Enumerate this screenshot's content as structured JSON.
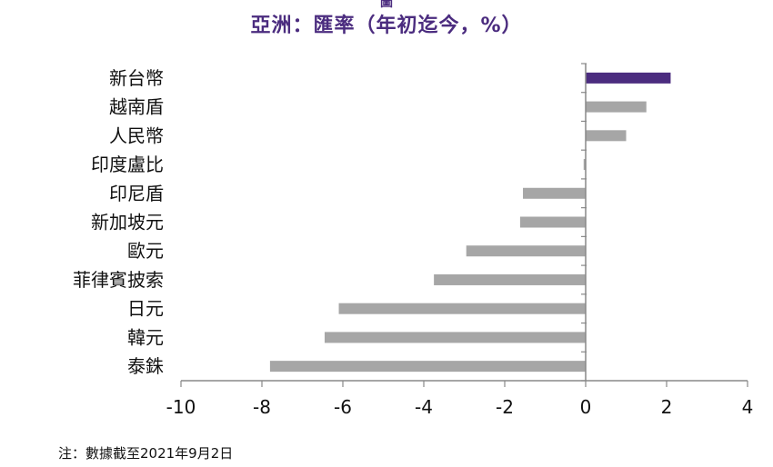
{
  "chart_data": {
    "type": "bar",
    "orientation": "horizontal",
    "title": "亞洲：匯率（年初迄今，%）",
    "title_mark": "圖",
    "categories": [
      "新台幣",
      "越南盾",
      "人民幣",
      "印度盧比",
      "印尼盾",
      "新加坡元",
      "歐元",
      "菲律賓披索",
      "日元",
      "韓元",
      "泰銖"
    ],
    "values": [
      2.1,
      1.5,
      1.0,
      -0.05,
      -1.55,
      -1.62,
      -2.95,
      -3.75,
      -6.1,
      -6.45,
      -7.8
    ],
    "highlight_index": 0,
    "xlim": [
      -10,
      4
    ],
    "xticks": [
      -10,
      -8,
      -6,
      -4,
      -2,
      0,
      2,
      4
    ],
    "colors": {
      "highlight": "#4b2c7f",
      "default": "#a6a6a6",
      "axis": "#888888"
    },
    "legend": "none",
    "grid": false
  },
  "footnote": "注：數據截至2021年9月2日"
}
